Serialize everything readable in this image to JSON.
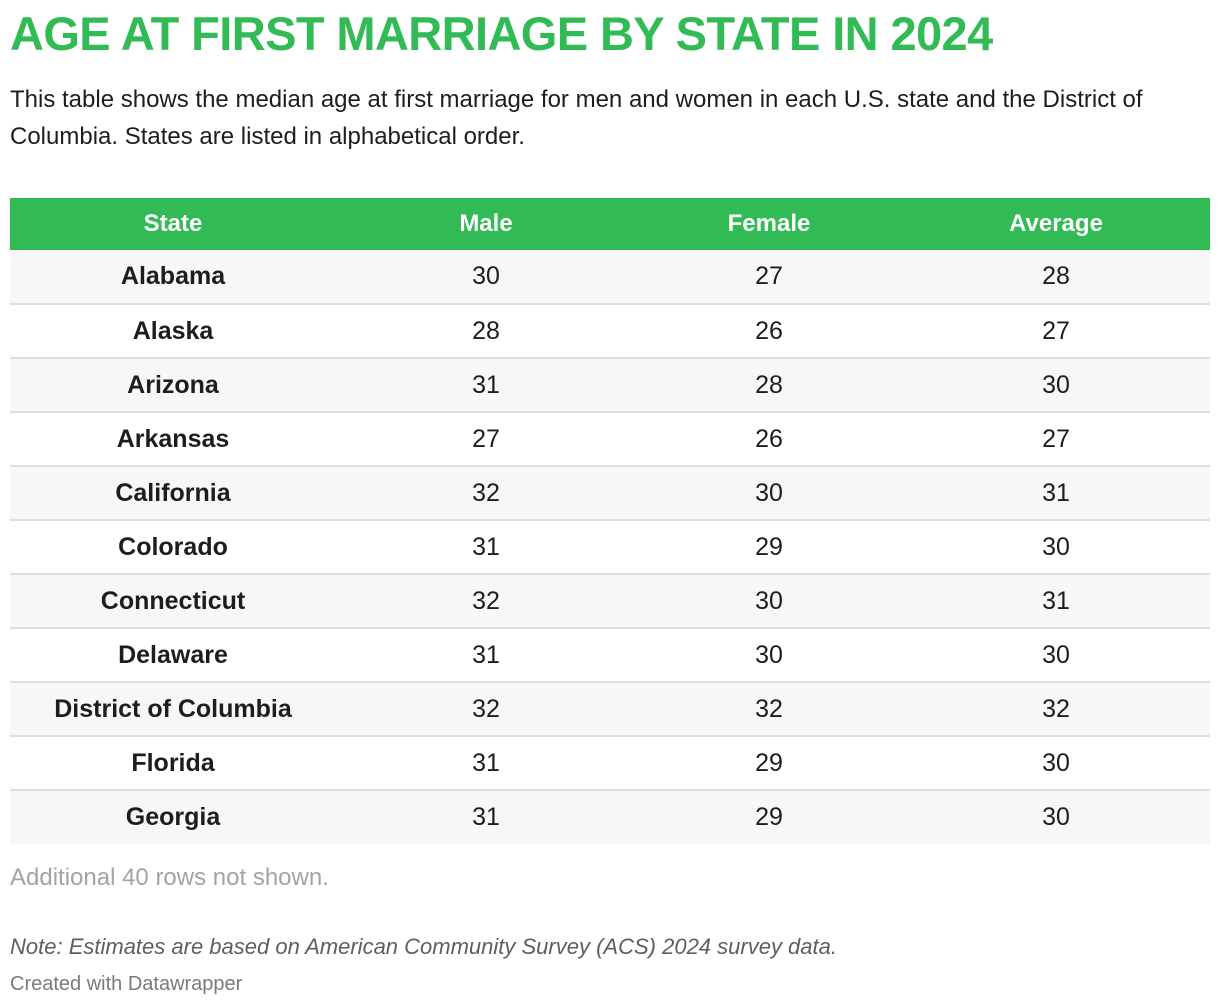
{
  "title": "AGE AT FIRST MARRIAGE BY STATE IN 2024",
  "subtitle": "This table shows the median age at first marriage for men and women in each U.S. state and the District of Columbia. States are listed in alphabetical order.",
  "colors": {
    "accent": "#32bb55",
    "header_text": "#ffffff",
    "row_stripe": "#f7f7f7",
    "muted_text": "#a3a3a3"
  },
  "chart_data": {
    "type": "table",
    "columns": [
      "State",
      "Male",
      "Female",
      "Average"
    ],
    "rows": [
      [
        "Alabama",
        30,
        27,
        28
      ],
      [
        "Alaska",
        28,
        26,
        27
      ],
      [
        "Arizona",
        31,
        28,
        30
      ],
      [
        "Arkansas",
        27,
        26,
        27
      ],
      [
        "California",
        32,
        30,
        31
      ],
      [
        "Colorado",
        31,
        29,
        30
      ],
      [
        "Connecticut",
        32,
        30,
        31
      ],
      [
        "Delaware",
        31,
        30,
        30
      ],
      [
        "District of Columbia",
        32,
        32,
        32
      ],
      [
        "Florida",
        31,
        29,
        30
      ],
      [
        "Georgia",
        31,
        29,
        30
      ]
    ]
  },
  "more_rows": "Additional 40 rows not shown.",
  "note": "Note: Estimates are based on American Community Survey (ACS) 2024 survey data.",
  "credit": "Created with Datawrapper"
}
